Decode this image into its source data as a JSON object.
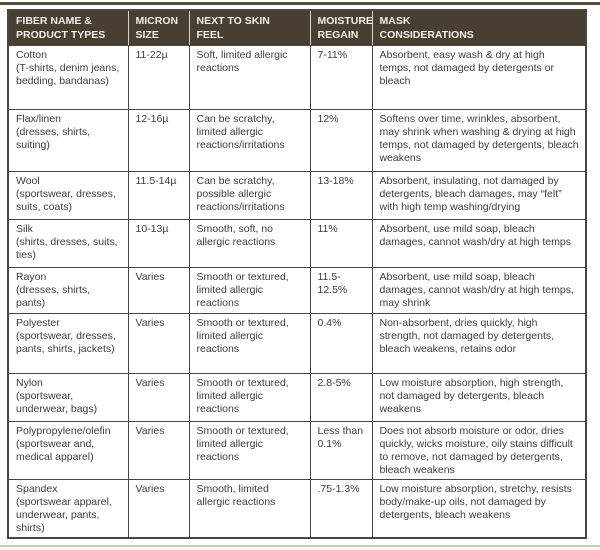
{
  "table": {
    "headers": [
      "FIBER NAME & PRODUCT TYPES",
      "MICRON SIZE",
      "NEXT TO SKIN FEEL",
      "MOISTURE REGAIN",
      "MASK CONSIDERATIONS"
    ],
    "rows": [
      {
        "fiber": "Cotton",
        "products": "(T-shirts, denim jeans, bedding, bandanas)",
        "micron": "11-22µ",
        "feel": "Soft, limited allergic reactions",
        "moisture": "7-11%",
        "mask": "Absorbent, easy wash & dry at high temps, not damaged by detergents or bleach"
      },
      {
        "fiber": "Flax/linen",
        "products": "(dresses, shirts, suiting)",
        "micron": "12-16µ",
        "feel": "Can be scratchy, limited allergic reactions/irritations",
        "moisture": "12%",
        "mask": "Softens over time, wrinkles, absorbent, may shrink when washing & drying at high temps, not damaged by detergents, bleach weakens"
      },
      {
        "fiber": "Wool",
        "products": "(sportswear, dresses, suits, coats)",
        "micron": "11.5-14µ",
        "feel": "Can be scratchy, possible allergic reactions/irritations",
        "moisture": "13-18%",
        "mask": "Absorbent, insulating, not damaged by detergents, bleach damages, may “felt” with high temp washing/drying"
      },
      {
        "fiber": "Silk",
        "products": "(shirts, dresses, suits, ties)",
        "micron": "10-13µ",
        "feel": "Smooth, soft, no allergic reactions",
        "moisture": "11%",
        "mask": "Absorbent, use mild soap, bleach damages, cannot wash/dry at high temps"
      },
      {
        "fiber": "Rayon",
        "products": "(dresses, shirts, pants)",
        "micron": "Varies",
        "feel": "Smooth or textured, limited allergic reactions",
        "moisture": "11.5-12.5%",
        "mask": "Absorbent, use mild soap, bleach damages, cannot wash/dry at high temps, may shrink"
      },
      {
        "fiber": "Polyester",
        "products": "(sportswear, dresses, pants, shirts, jackets)",
        "micron": "Varies",
        "feel": "Smooth or textured, limited allergic reactions",
        "moisture": "0.4%",
        "mask": "Non-absorbent, dries quickly, high strength, not damaged by detergents, bleach weakens, retains odor"
      },
      {
        "fiber": "Nylon",
        "products": "(sportswear, underwear, bags)",
        "micron": "Varies",
        "feel": "Smooth or textured, limited allergic reactions",
        "moisture": "2.8-5%",
        "mask": "Low moisture absorption, high strength, not damaged by detergents, bleach weakens"
      },
      {
        "fiber": "Polypropylene/olefin",
        "products": "(sportswear and, medical apparel)",
        "micron": "Varies",
        "feel": "Smooth or textured, limited allergic reactions",
        "moisture": "Less than 0.1%",
        "mask": "Does not absorb moisture or odor, dries quickly, wicks moisture, oily stains difficult to remove, not damaged by detergents, bleach weakens"
      },
      {
        "fiber": "Spandex",
        "products": "(sportswear apparel, underwear, pants, shirts)",
        "micron": "Varies",
        "feel": "Smooth, limited allergic reactions",
        "moisture": ".75-1.3%",
        "mask": "Low moisture absorption, stretchy, resists body/make-up oils, not damaged by detergents, bleach weakens"
      }
    ]
  },
  "colors": {
    "header_background": "#473f32",
    "header_text": "#f2efe7",
    "table_border": "#474642",
    "header_separator": "#d8d4c8",
    "body_text": "#3c3c3c"
  }
}
